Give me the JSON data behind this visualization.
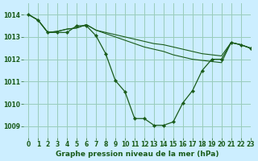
{
  "title": "Graphe pression niveau de la mer (hPa)",
  "background_color": "#cceeff",
  "grid_color": "#99ccbb",
  "line_color": "#1a5c1a",
  "marker_color": "#1a5c1a",
  "xlim": [
    -0.5,
    23
  ],
  "ylim": [
    1008.5,
    1014.5
  ],
  "yticks": [
    1009,
    1010,
    1011,
    1012,
    1013,
    1014
  ],
  "xticks": [
    0,
    1,
    2,
    3,
    4,
    5,
    6,
    7,
    8,
    9,
    10,
    11,
    12,
    13,
    14,
    15,
    16,
    17,
    18,
    19,
    20,
    21,
    22,
    23
  ],
  "series": [
    {
      "x": [
        0,
        1,
        2,
        3,
        4,
        5,
        6,
        7,
        8,
        9,
        10,
        11,
        12,
        13,
        14,
        15,
        16,
        17,
        18,
        19,
        20,
        21,
        22,
        23
      ],
      "y": [
        1014.0,
        1013.75,
        1013.2,
        1013.2,
        1013.2,
        1013.5,
        1013.5,
        1013.05,
        1012.25,
        1011.05,
        1010.55,
        1009.35,
        1009.35,
        1009.05,
        1009.05,
        1009.2,
        1010.05,
        1010.6,
        1011.5,
        1012.0,
        1012.0,
        1012.75,
        1012.65,
        1012.5
      ],
      "markers": true,
      "lw": 0.9
    },
    {
      "x": [
        0,
        1,
        2,
        3,
        4,
        5,
        6,
        7,
        8,
        9,
        10,
        11,
        12,
        13,
        14,
        15,
        16,
        17,
        18,
        19,
        20,
        21,
        22,
        23
      ],
      "y": [
        1014.0,
        1013.75,
        1013.2,
        1013.25,
        1013.35,
        1013.4,
        1013.55,
        1013.3,
        1013.2,
        1013.1,
        1013.0,
        1012.9,
        1012.8,
        1012.7,
        1012.65,
        1012.55,
        1012.45,
        1012.35,
        1012.25,
        1012.2,
        1012.15,
        1012.75,
        1012.65,
        1012.5
      ],
      "markers": false,
      "lw": 0.8
    },
    {
      "x": [
        0,
        1,
        2,
        3,
        4,
        5,
        6,
        7,
        8,
        9,
        10,
        11,
        12,
        13,
        14,
        15,
        16,
        17,
        18,
        19,
        20,
        21,
        22,
        23
      ],
      "y": [
        1014.0,
        1013.75,
        1013.2,
        1013.25,
        1013.35,
        1013.4,
        1013.55,
        1013.3,
        1013.15,
        1013.0,
        1012.85,
        1012.7,
        1012.55,
        1012.45,
        1012.35,
        1012.2,
        1012.1,
        1012.0,
        1011.95,
        1011.9,
        1011.85,
        1012.75,
        1012.65,
        1012.5
      ],
      "markers": false,
      "lw": 0.8
    }
  ],
  "fontsize_label": 6.5,
  "fontsize_tick": 5.5
}
